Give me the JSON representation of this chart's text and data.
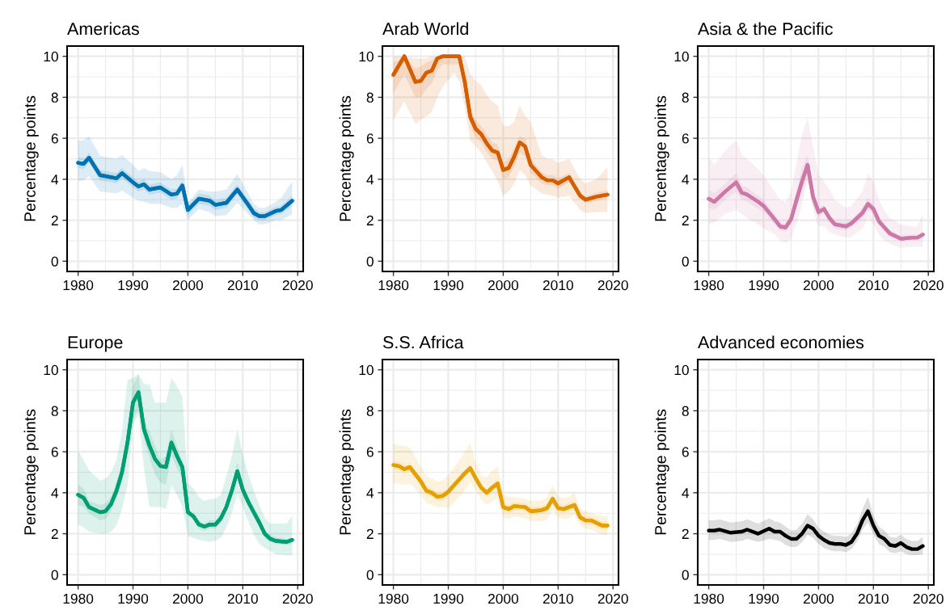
{
  "chart_data": [
    {
      "type": "line",
      "title": "Americas",
      "ylabel": "Percentage points",
      "xlim": [
        1978,
        2021
      ],
      "xticks": [
        1980,
        1990,
        2000,
        2010,
        2020
      ],
      "ylim": [
        -0.5,
        10.5
      ],
      "yticks": [
        0,
        2,
        4,
        6,
        8,
        10
      ],
      "grid": true,
      "series": [
        {
          "color": "#0072b2",
          "x": [
            1980,
            1981,
            1982,
            1984,
            1987,
            1988,
            1990,
            1991,
            1992,
            1993,
            1995,
            1997,
            1998,
            1999,
            2000,
            2002,
            2004,
            2005,
            2007,
            2009,
            2011,
            2012,
            2013,
            2014,
            2016,
            2017,
            2019
          ],
          "values": [
            4.8,
            4.75,
            5.05,
            4.2,
            4.05,
            4.3,
            3.85,
            3.65,
            3.75,
            3.5,
            3.6,
            3.25,
            3.3,
            3.7,
            2.5,
            3.05,
            2.95,
            2.75,
            2.85,
            3.5,
            2.75,
            2.35,
            2.2,
            2.2,
            2.45,
            2.5,
            2.95
          ],
          "lower": [
            4.55,
            4.5,
            4.8,
            3.95,
            3.8,
            4.05,
            3.6,
            3.4,
            3.5,
            3.25,
            3.35,
            3.0,
            3.05,
            3.45,
            2.25,
            2.8,
            2.7,
            2.5,
            2.6,
            3.25,
            2.5,
            2.1,
            2.0,
            2.0,
            2.25,
            2.3,
            2.7
          ],
          "upper": [
            5.1,
            5.0,
            5.3,
            4.45,
            4.3,
            4.55,
            4.1,
            3.9,
            4.0,
            3.75,
            3.85,
            3.5,
            3.55,
            3.95,
            2.75,
            3.3,
            3.2,
            3.0,
            3.1,
            3.75,
            3.0,
            2.6,
            2.4,
            2.4,
            2.65,
            2.7,
            3.2
          ]
        },
        {
          "color": "#0072b2",
          "x": [
            1980,
            1981,
            1982,
            1984,
            1987,
            1988,
            1990,
            1991,
            1992,
            1993,
            1995,
            1997,
            1998,
            1999,
            2000,
            2002,
            2004,
            2005,
            2007,
            2009,
            2011,
            2012,
            2013,
            2014,
            2016,
            2017,
            2019
          ],
          "values": [
            4.8,
            4.75,
            5.05,
            4.2,
            4.05,
            4.3,
            3.85,
            3.65,
            3.75,
            3.5,
            3.6,
            3.25,
            3.3,
            3.7,
            2.5,
            3.05,
            2.95,
            2.75,
            2.85,
            3.5,
            2.75,
            2.35,
            2.2,
            2.2,
            2.45,
            2.5,
            2.95
          ],
          "lower": [
            3.9,
            3.95,
            4.15,
            3.4,
            3.3,
            3.45,
            3.1,
            2.95,
            2.9,
            2.8,
            2.8,
            2.6,
            2.6,
            2.8,
            2.0,
            2.55,
            2.4,
            2.2,
            2.25,
            2.85,
            2.3,
            2.0,
            1.8,
            1.8,
            2.0,
            2.0,
            2.3
          ],
          "upper": [
            5.9,
            5.9,
            6.1,
            5.15,
            5.0,
            5.2,
            4.7,
            4.4,
            4.55,
            4.4,
            4.35,
            4.0,
            4.2,
            4.7,
            2.85,
            3.5,
            3.4,
            3.4,
            3.5,
            4.25,
            3.3,
            2.8,
            2.6,
            2.6,
            2.9,
            3.1,
            3.9
          ]
        }
      ]
    },
    {
      "type": "line",
      "title": "Arab World",
      "ylabel": "Percentage points",
      "xlim": [
        1978,
        2021
      ],
      "xticks": [
        1980,
        1990,
        2000,
        2010,
        2020
      ],
      "ylim": [
        -0.5,
        10.5
      ],
      "yticks": [
        0,
        2,
        4,
        6,
        8,
        10
      ],
      "grid": true,
      "series": [
        {
          "color": "#d55e00",
          "x": [
            1980,
            1982,
            1984,
            1985,
            1986,
            1987,
            1988,
            1989,
            1991,
            1992,
            1993,
            1994,
            1995,
            1996,
            1997,
            1998,
            1999,
            2000,
            2001,
            2002,
            2003,
            2004,
            2005,
            2007,
            2008,
            2009,
            2010,
            2012,
            2014,
            2015,
            2017,
            2019
          ],
          "values": [
            9.1,
            10,
            8.75,
            8.8,
            9.2,
            9.3,
            9.9,
            10,
            10,
            10,
            8.75,
            7.05,
            6.45,
            6.2,
            5.75,
            5.4,
            5.3,
            4.45,
            4.55,
            5.1,
            5.8,
            5.6,
            4.7,
            4.1,
            3.95,
            3.95,
            3.8,
            4.1,
            3.2,
            3.0,
            3.15,
            3.25
          ],
          "lower": [
            8.2,
            9.1,
            8.0,
            8.0,
            8.4,
            8.7,
            9.3,
            9.6,
            9.6,
            9.6,
            8.3,
            6.6,
            6.0,
            5.8,
            5.3,
            5.0,
            4.9,
            4.0,
            4.1,
            4.6,
            5.3,
            5.1,
            4.3,
            3.8,
            3.7,
            3.7,
            3.55,
            3.85,
            3.0,
            2.85,
            2.95,
            3.05
          ],
          "upper": [
            9.7,
            10,
            9.4,
            9.5,
            9.7,
            9.8,
            10,
            10,
            10,
            10,
            9.1,
            7.4,
            6.9,
            6.6,
            6.2,
            5.8,
            5.7,
            4.8,
            5.0,
            5.5,
            6.1,
            6.0,
            5.0,
            4.35,
            4.2,
            4.2,
            4.05,
            4.3,
            3.4,
            3.15,
            3.35,
            3.45
          ]
        },
        {
          "color": "#d55e00",
          "x": [
            1980,
            1982,
            1984,
            1985,
            1986,
            1987,
            1988,
            1989,
            1991,
            1992,
            1993,
            1994,
            1995,
            1996,
            1997,
            1998,
            1999,
            2000,
            2001,
            2002,
            2003,
            2004,
            2005,
            2007,
            2008,
            2009,
            2010,
            2012,
            2014,
            2015,
            2017,
            2019
          ],
          "values": [
            9.1,
            10,
            8.75,
            8.8,
            9.2,
            9.3,
            9.9,
            10,
            10,
            10,
            8.75,
            7.05,
            6.45,
            6.2,
            5.75,
            5.4,
            5.3,
            4.45,
            4.55,
            5.1,
            5.8,
            5.6,
            4.7,
            4.1,
            3.95,
            3.95,
            3.8,
            4.1,
            3.2,
            3.0,
            3.15,
            3.25
          ],
          "lower": [
            6.9,
            7.8,
            6.7,
            6.9,
            7.05,
            7.3,
            8.0,
            8.5,
            9.2,
            8.8,
            7.5,
            5.9,
            5.6,
            5.3,
            4.8,
            4.4,
            3.9,
            3.2,
            3.4,
            3.8,
            4.45,
            4.2,
            3.7,
            3.3,
            3.25,
            3.2,
            3.1,
            3.2,
            2.5,
            2.35,
            2.4,
            2.4
          ],
          "upper": [
            10,
            10,
            9.9,
            9.9,
            9.9,
            10,
            10,
            10,
            10,
            10,
            10,
            9.15,
            8.8,
            8.6,
            8.1,
            7.8,
            7.6,
            6.6,
            6.6,
            6.8,
            7.6,
            7.1,
            6.8,
            5.2,
            5.0,
            5.0,
            4.8,
            5.0,
            4.0,
            3.8,
            4.0,
            4.6
          ]
        }
      ]
    },
    {
      "type": "line",
      "title": "Asia & the Pacific",
      "ylabel": "Percentage points",
      "xlim": [
        1978,
        2021
      ],
      "xticks": [
        1980,
        1990,
        2000,
        2010,
        2020
      ],
      "ylim": [
        -0.5,
        10.5
      ],
      "yticks": [
        0,
        2,
        4,
        6,
        8,
        10
      ],
      "grid": true,
      "series": [
        {
          "color": "#cc79a7",
          "x": [
            1980,
            1981,
            1983,
            1985,
            1986,
            1987,
            1989,
            1990,
            1992,
            1993,
            1994,
            1995,
            1996,
            1997,
            1998,
            1999,
            2000,
            2001,
            2002,
            2003,
            2005,
            2006,
            2008,
            2009,
            2010,
            2011,
            2012,
            2013,
            2015,
            2017,
            2018,
            2019
          ],
          "values": [
            3.05,
            2.9,
            3.4,
            3.85,
            3.35,
            3.25,
            2.9,
            2.7,
            2.05,
            1.7,
            1.65,
            2.05,
            3.0,
            3.9,
            4.7,
            3.15,
            2.4,
            2.55,
            2.1,
            1.8,
            1.7,
            1.85,
            2.35,
            2.8,
            2.55,
            1.95,
            1.65,
            1.35,
            1.1,
            1.15,
            1.15,
            1.3
          ],
          "lower": [
            2.6,
            2.5,
            3.0,
            3.4,
            3.0,
            2.9,
            2.55,
            2.4,
            1.8,
            1.5,
            1.45,
            1.8,
            2.6,
            3.3,
            4.1,
            2.7,
            2.15,
            2.35,
            1.9,
            1.6,
            1.5,
            1.65,
            2.1,
            2.5,
            2.3,
            1.75,
            1.45,
            1.2,
            1.0,
            1.05,
            1.05,
            1.2
          ],
          "upper": [
            3.5,
            3.3,
            3.8,
            4.3,
            3.7,
            3.6,
            3.2,
            3.0,
            2.3,
            1.9,
            1.85,
            2.3,
            3.4,
            4.6,
            5.2,
            3.4,
            2.65,
            2.75,
            2.3,
            1.95,
            1.9,
            2.05,
            2.6,
            3.1,
            2.8,
            2.15,
            1.8,
            1.5,
            1.25,
            1.3,
            1.3,
            1.45
          ]
        },
        {
          "color": "#cc79a7",
          "x": [
            1980,
            1981,
            1983,
            1985,
            1986,
            1987,
            1989,
            1990,
            1992,
            1993,
            1994,
            1995,
            1996,
            1997,
            1998,
            1999,
            2000,
            2001,
            2002,
            2003,
            2005,
            2006,
            2008,
            2009,
            2010,
            2011,
            2012,
            2013,
            2015,
            2017,
            2018,
            2019
          ],
          "values": [
            3.05,
            2.9,
            3.4,
            3.85,
            3.35,
            3.25,
            2.9,
            2.7,
            2.05,
            1.7,
            1.65,
            2.05,
            3.0,
            3.9,
            4.7,
            3.15,
            2.4,
            2.55,
            2.1,
            1.8,
            1.7,
            1.85,
            2.35,
            2.8,
            2.55,
            1.95,
            1.65,
            1.35,
            1.1,
            1.15,
            1.15,
            1.3
          ],
          "lower": [
            1.8,
            1.9,
            2.3,
            2.5,
            2.3,
            2.1,
            1.8,
            1.6,
            1.3,
            1.0,
            0.9,
            1.1,
            1.8,
            2.8,
            3.9,
            2.5,
            1.7,
            1.7,
            1.4,
            1.3,
            1.15,
            1.2,
            1.6,
            2.1,
            1.8,
            1.3,
            1.0,
            0.85,
            0.65,
            0.7,
            0.7,
            0.7
          ],
          "upper": [
            5.1,
            4.7,
            5.4,
            5.9,
            5.2,
            5.0,
            4.5,
            4.2,
            3.4,
            3.0,
            2.9,
            3.4,
            4.8,
            6.2,
            7.0,
            5.6,
            4.2,
            3.9,
            3.5,
            3.0,
            2.6,
            2.7,
            3.4,
            4.3,
            3.9,
            3.0,
            2.5,
            2.1,
            1.8,
            1.7,
            1.7,
            2.3
          ]
        }
      ]
    },
    {
      "type": "line",
      "title": "Europe",
      "ylabel": "Percentage points",
      "xlim": [
        1978,
        2021
      ],
      "xticks": [
        1980,
        1990,
        2000,
        2010,
        2020
      ],
      "ylim": [
        -0.5,
        10.5
      ],
      "yticks": [
        0,
        2,
        4,
        6,
        8,
        10
      ],
      "grid": true,
      "series": [
        {
          "color": "#009e73",
          "x": [
            1980,
            1981,
            1982,
            1984,
            1985,
            1986,
            1987,
            1988,
            1989,
            1990,
            1991,
            1992,
            1993,
            1994,
            1995,
            1996,
            1997,
            1998,
            1999,
            2000,
            2001,
            2002,
            2003,
            2004,
            2005,
            2006,
            2007,
            2008,
            2009,
            2010,
            2011,
            2012,
            2013,
            2014,
            2015,
            2016,
            2018,
            2019
          ],
          "values": [
            3.9,
            3.75,
            3.3,
            3.05,
            3.1,
            3.45,
            4.1,
            5.0,
            6.45,
            8.4,
            8.9,
            7.1,
            6.3,
            5.65,
            5.3,
            5.25,
            6.45,
            5.8,
            5.25,
            3.05,
            2.85,
            2.45,
            2.35,
            2.45,
            2.45,
            2.75,
            3.3,
            4.1,
            5.05,
            4.15,
            3.55,
            3.05,
            2.55,
            2.0,
            1.75,
            1.65,
            1.6,
            1.7
          ],
          "lower": [
            3.4,
            3.3,
            3.0,
            2.65,
            2.7,
            3.1,
            3.7,
            4.6,
            6.0,
            7.5,
            8.1,
            6.6,
            5.7,
            4.9,
            4.5,
            4.4,
            5.8,
            5.2,
            4.7,
            2.9,
            2.7,
            2.25,
            2.15,
            2.25,
            2.25,
            2.5,
            3.1,
            3.8,
            4.7,
            3.9,
            3.3,
            2.8,
            2.3,
            1.8,
            1.6,
            1.5,
            1.45,
            1.5
          ],
          "upper": [
            4.4,
            4.2,
            3.6,
            3.4,
            3.5,
            3.8,
            4.5,
            5.4,
            6.9,
            9.2,
            9.8,
            7.6,
            7.0,
            6.3,
            5.6,
            5.8,
            7.1,
            6.3,
            5.5,
            3.2,
            3.05,
            2.65,
            2.5,
            2.65,
            2.65,
            2.95,
            3.5,
            4.4,
            5.5,
            4.4,
            3.8,
            3.3,
            2.8,
            2.2,
            1.95,
            1.85,
            1.75,
            1.8
          ]
        },
        {
          "color": "#009e73",
          "x": [
            1980,
            1981,
            1982,
            1984,
            1985,
            1986,
            1987,
            1988,
            1989,
            1990,
            1991,
            1992,
            1993,
            1994,
            1995,
            1996,
            1997,
            1998,
            1999,
            2000,
            2001,
            2002,
            2003,
            2004,
            2005,
            2006,
            2007,
            2008,
            2009,
            2010,
            2011,
            2012,
            2013,
            2014,
            2015,
            2016,
            2018,
            2019
          ],
          "values": [
            3.9,
            3.75,
            3.3,
            3.05,
            3.1,
            3.45,
            4.1,
            5.0,
            6.45,
            8.4,
            8.9,
            7.1,
            6.3,
            5.65,
            5.3,
            5.25,
            6.45,
            5.8,
            5.25,
            3.05,
            2.85,
            2.45,
            2.35,
            2.45,
            2.45,
            2.75,
            3.3,
            4.1,
            5.05,
            4.15,
            3.55,
            3.05,
            2.55,
            2.0,
            1.75,
            1.65,
            1.6,
            1.7
          ],
          "lower": [
            2.45,
            2.3,
            2.1,
            2.0,
            2.0,
            2.1,
            2.4,
            3.2,
            4.35,
            7.3,
            7.8,
            5.2,
            3.3,
            3.3,
            3.3,
            3.2,
            4.35,
            3.9,
            3.3,
            1.9,
            1.8,
            1.7,
            1.65,
            1.6,
            1.65,
            1.8,
            2.3,
            3.0,
            3.95,
            3.3,
            2.6,
            1.95,
            1.5,
            1.3,
            1.15,
            1.0,
            0.95,
            0.95
          ],
          "upper": [
            6.05,
            5.6,
            5.1,
            4.6,
            4.7,
            5.0,
            5.6,
            7.0,
            9.5,
            9.6,
            9.8,
            9.3,
            9.3,
            8.4,
            8.4,
            8.4,
            9.6,
            9.2,
            8.7,
            4.5,
            4.2,
            3.8,
            3.6,
            3.7,
            3.7,
            3.9,
            4.8,
            5.8,
            7.1,
            5.9,
            4.9,
            4.1,
            3.4,
            2.8,
            2.5,
            2.5,
            2.5,
            2.9
          ]
        }
      ]
    },
    {
      "type": "line",
      "title": "S.S. Africa",
      "ylabel": "Percentage points",
      "xlim": [
        1978,
        2021
      ],
      "xticks": [
        1980,
        1990,
        2000,
        2010,
        2020
      ],
      "ylim": [
        -0.5,
        10.5
      ],
      "yticks": [
        0,
        2,
        4,
        6,
        8,
        10
      ],
      "grid": true,
      "series": [
        {
          "color": "#e69f00",
          "x": [
            1980,
            1981,
            1982,
            1983,
            1985,
            1986,
            1987,
            1988,
            1989,
            1990,
            1992,
            1993,
            1994,
            1995,
            1996,
            1997,
            1998,
            1999,
            2000,
            2001,
            2002,
            2004,
            2005,
            2007,
            2008,
            2009,
            2010,
            2011,
            2012,
            2013,
            2014,
            2015,
            2016,
            2018,
            2019
          ],
          "values": [
            5.35,
            5.3,
            5.15,
            5.25,
            4.55,
            4.1,
            4.0,
            3.8,
            3.85,
            4.05,
            4.65,
            4.95,
            5.2,
            4.7,
            4.25,
            4.0,
            4.25,
            4.45,
            3.3,
            3.2,
            3.35,
            3.3,
            3.1,
            3.15,
            3.25,
            3.7,
            3.25,
            3.2,
            3.3,
            3.4,
            2.8,
            2.65,
            2.65,
            2.4,
            2.4
          ],
          "lower": [
            5.15,
            5.1,
            4.95,
            5.05,
            4.35,
            3.9,
            3.8,
            3.6,
            3.65,
            3.85,
            4.45,
            4.75,
            5.0,
            4.5,
            4.05,
            3.8,
            4.05,
            4.25,
            3.1,
            3.0,
            3.15,
            3.1,
            2.9,
            2.95,
            3.05,
            3.5,
            3.05,
            3.0,
            3.1,
            3.2,
            2.6,
            2.45,
            2.45,
            2.2,
            2.2
          ],
          "upper": [
            5.55,
            5.5,
            5.35,
            5.45,
            4.75,
            4.3,
            4.2,
            4.0,
            4.05,
            4.25,
            4.85,
            5.15,
            5.4,
            4.9,
            4.45,
            4.2,
            4.45,
            4.65,
            3.5,
            3.4,
            3.55,
            3.5,
            3.3,
            3.35,
            3.45,
            3.9,
            3.45,
            3.4,
            3.5,
            3.6,
            3.0,
            2.85,
            2.85,
            2.6,
            2.6
          ]
        },
        {
          "color": "#e69f00",
          "x": [
            1980,
            1981,
            1982,
            1983,
            1985,
            1986,
            1987,
            1988,
            1989,
            1990,
            1992,
            1993,
            1994,
            1995,
            1996,
            1997,
            1998,
            1999,
            2000,
            2001,
            2002,
            2004,
            2005,
            2007,
            2008,
            2009,
            2010,
            2011,
            2012,
            2013,
            2014,
            2015,
            2016,
            2018,
            2019
          ],
          "values": [
            5.35,
            5.3,
            5.15,
            5.25,
            4.55,
            4.1,
            4.0,
            3.8,
            3.85,
            4.05,
            4.65,
            4.95,
            5.2,
            4.7,
            4.25,
            4.0,
            4.25,
            4.45,
            3.3,
            3.2,
            3.35,
            3.3,
            3.1,
            3.15,
            3.25,
            3.7,
            3.25,
            3.2,
            3.3,
            3.4,
            2.8,
            2.65,
            2.65,
            2.4,
            2.4
          ],
          "lower": [
            4.45,
            4.45,
            4.35,
            4.45,
            3.9,
            3.5,
            3.4,
            3.3,
            3.3,
            3.25,
            3.8,
            4.1,
            4.5,
            4.1,
            3.65,
            3.4,
            3.6,
            3.75,
            2.8,
            2.7,
            2.85,
            2.75,
            2.6,
            2.6,
            2.7,
            3.15,
            2.8,
            2.7,
            2.75,
            2.9,
            2.4,
            2.25,
            2.2,
            1.95,
            1.95
          ],
          "upper": [
            6.4,
            6.3,
            6.3,
            6.2,
            5.3,
            4.8,
            4.7,
            4.55,
            4.6,
            4.85,
            5.6,
            6.0,
            6.4,
            5.5,
            4.85,
            4.75,
            5.1,
            5.3,
            3.9,
            3.8,
            3.8,
            3.7,
            3.6,
            3.6,
            3.8,
            4.35,
            3.8,
            3.75,
            3.8,
            4.0,
            3.2,
            3.1,
            3.0,
            2.85,
            2.85
          ]
        }
      ]
    },
    {
      "type": "line",
      "title": "Advanced economies",
      "ylabel": "Percentage points",
      "xlim": [
        1978,
        2021
      ],
      "xticks": [
        1980,
        1990,
        2000,
        2010,
        2020
      ],
      "ylim": [
        -0.5,
        10.5
      ],
      "yticks": [
        0,
        2,
        4,
        6,
        8,
        10
      ],
      "grid": true,
      "series": [
        {
          "color": "#000000",
          "x": [
            1980,
            1981,
            1982,
            1984,
            1986,
            1987,
            1989,
            1991,
            1992,
            1993,
            1994,
            1995,
            1996,
            1997,
            1998,
            1999,
            2000,
            2001,
            2002,
            2003,
            2004,
            2005,
            2006,
            2007,
            2008,
            2009,
            2010,
            2011,
            2012,
            2013,
            2014,
            2015,
            2016,
            2017,
            2018,
            2019
          ],
          "values": [
            2.15,
            2.15,
            2.2,
            2.05,
            2.1,
            2.2,
            2.0,
            2.25,
            2.1,
            2.1,
            1.9,
            1.75,
            1.75,
            2.0,
            2.4,
            2.25,
            1.9,
            1.7,
            1.55,
            1.5,
            1.5,
            1.45,
            1.6,
            2.0,
            2.65,
            3.1,
            2.4,
            1.9,
            1.75,
            1.45,
            1.4,
            1.55,
            1.35,
            1.25,
            1.25,
            1.4
          ],
          "lower": [
            1.7,
            1.7,
            1.75,
            1.6,
            1.65,
            1.75,
            1.6,
            1.75,
            1.7,
            1.65,
            1.45,
            1.35,
            1.35,
            1.6,
            1.95,
            1.8,
            1.5,
            1.3,
            1.2,
            1.15,
            1.15,
            1.1,
            1.25,
            1.6,
            2.2,
            2.55,
            1.95,
            1.5,
            1.35,
            1.1,
            1.05,
            1.15,
            1.0,
            0.95,
            0.95,
            1.0
          ],
          "upper": [
            2.65,
            2.65,
            2.7,
            2.55,
            2.6,
            2.7,
            2.5,
            2.75,
            2.6,
            2.55,
            2.35,
            2.15,
            2.2,
            2.5,
            2.95,
            2.7,
            2.3,
            2.1,
            1.95,
            1.9,
            1.9,
            1.85,
            2.0,
            2.45,
            3.2,
            3.8,
            2.9,
            2.35,
            2.15,
            1.85,
            1.8,
            1.95,
            1.75,
            1.65,
            1.65,
            1.85
          ]
        }
      ]
    }
  ]
}
